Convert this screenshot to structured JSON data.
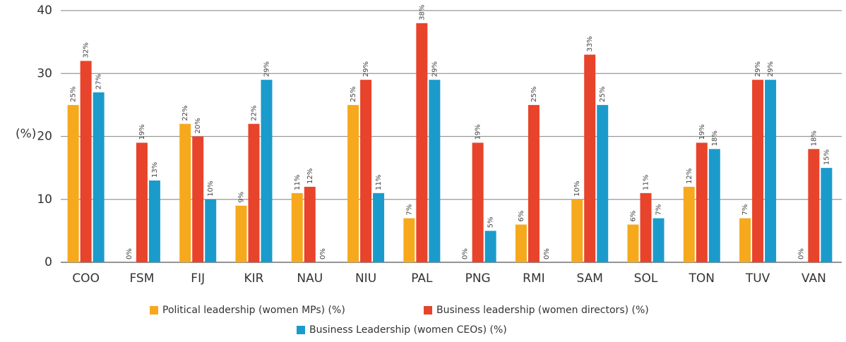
{
  "chart_data": {
    "type": "bar",
    "y_label": "(%)",
    "categories": [
      "COO",
      "FSM",
      "FIJ",
      "KIR",
      "NAU",
      "NIU",
      "PAL",
      "PNG",
      "RMI",
      "SAM",
      "SOL",
      "TON",
      "TUV",
      "VAN"
    ],
    "series": [
      {
        "name": "Political leadership (women MPs) (%)",
        "color": "#f6a91d",
        "values": [
          25,
          0,
          22,
          9,
          11,
          25,
          7,
          0,
          6,
          10,
          6,
          12,
          7,
          0
        ],
        "value_labels": [
          "25%",
          "0%",
          "22%",
          "9%",
          "11%",
          "25%",
          "7%",
          "0%",
          "6%",
          "10%",
          "6%",
          "12%",
          "7%",
          "0%"
        ]
      },
      {
        "name": "Business leadership (women directors) (%)",
        "color": "#e8432b",
        "values": [
          32,
          19,
          20,
          22,
          12,
          29,
          38,
          19,
          25,
          33,
          11,
          19,
          29,
          18
        ],
        "value_labels": [
          "32%",
          "19%",
          "20%",
          "22%",
          "12%",
          "29%",
          "38%",
          "19%",
          "25%",
          "33%",
          "11%",
          "19%",
          "29%",
          "18%"
        ]
      },
      {
        "name": "Business Leadership (women CEOs) (%)",
        "color": "#1b9bcb",
        "values": [
          27,
          13,
          10,
          29,
          0,
          11,
          29,
          5,
          0,
          25,
          7,
          18,
          29,
          15
        ],
        "value_labels": [
          "27%",
          "13%",
          "10%",
          "29%",
          "0%",
          "11%",
          "29%",
          "5%",
          "0%",
          "25%",
          "7%",
          "18%",
          "29%",
          "15%"
        ]
      }
    ],
    "ylim": [
      0,
      40
    ],
    "yticks": [
      0,
      10,
      20,
      30,
      40
    ],
    "grid": true
  }
}
